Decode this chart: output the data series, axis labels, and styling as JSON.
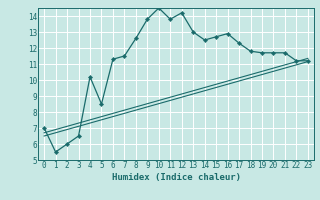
{
  "title": "",
  "xlabel": "Humidex (Indice chaleur)",
  "background_color": "#c8e8e4",
  "grid_color": "#ffffff",
  "line_color": "#1a6b6b",
  "xlim": [
    -0.5,
    23.5
  ],
  "ylim": [
    5,
    14.5
  ],
  "yticks": [
    5,
    6,
    7,
    8,
    9,
    10,
    11,
    12,
    13,
    14
  ],
  "xticks": [
    0,
    1,
    2,
    3,
    4,
    5,
    6,
    7,
    8,
    9,
    10,
    11,
    12,
    13,
    14,
    15,
    16,
    17,
    18,
    19,
    20,
    21,
    22,
    23
  ],
  "main_x": [
    0,
    1,
    2,
    3,
    4,
    5,
    6,
    7,
    8,
    9,
    10,
    11,
    12,
    13,
    14,
    15,
    16,
    17,
    18,
    19,
    20,
    21,
    22,
    23
  ],
  "main_y": [
    7.0,
    5.5,
    6.0,
    6.5,
    10.2,
    8.5,
    11.3,
    11.5,
    12.6,
    13.8,
    14.5,
    13.8,
    14.2,
    13.0,
    12.5,
    12.7,
    12.9,
    12.3,
    11.8,
    11.7,
    11.7,
    11.7,
    11.2,
    11.2
  ],
  "line1_y": [
    6.5,
    11.15
  ],
  "line2_y": [
    6.7,
    11.35
  ],
  "font_size_ticks": 5.5,
  "font_size_xlabel": 6.5
}
